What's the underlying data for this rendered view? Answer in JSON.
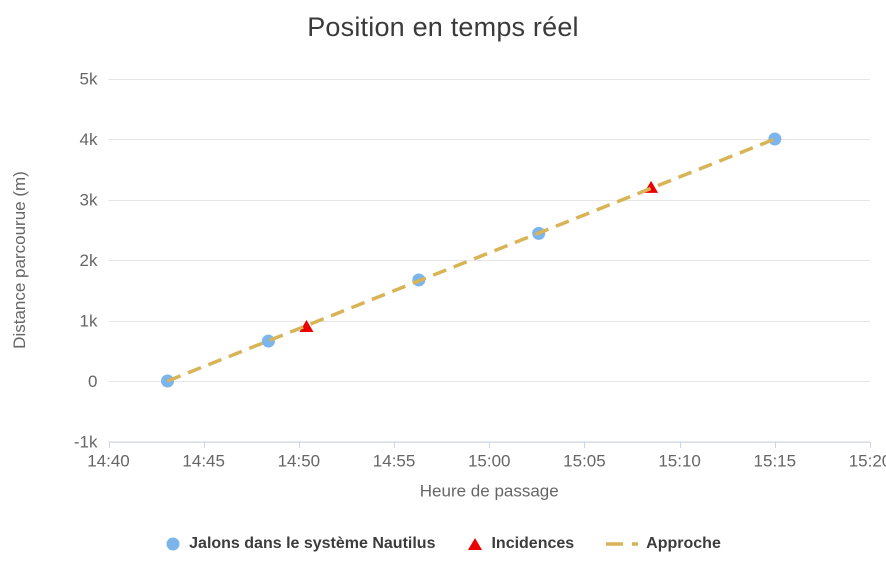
{
  "chart_data": {
    "type": "scatter",
    "title": "Position en temps réel",
    "xlabel": "Heure de passage",
    "ylabel": "Distance parcourue (m)",
    "legend_position": "bottom",
    "grid": "horizontal-only",
    "x_axis": {
      "tick_labels": [
        "14:40",
        "14:45",
        "14:50",
        "14:55",
        "15:00",
        "15:05",
        "15:10",
        "15:15",
        "15:20"
      ],
      "range_minutes": [
        0,
        40
      ],
      "tick_interval_minutes": 5,
      "base_time": "14:40"
    },
    "y_axis": {
      "tick_labels": [
        "5k",
        "4k",
        "3k",
        "2k",
        "1k",
        "0",
        "-1k"
      ],
      "tick_values": [
        5000,
        4000,
        3000,
        2000,
        1000,
        0,
        -1000
      ],
      "range": [
        -1000,
        5000
      ]
    },
    "series": [
      {
        "id": "jalons",
        "name": "Jalons dans le système Nautilus",
        "type": "scatter",
        "marker": "circle",
        "color": "#7cb5ec",
        "points": [
          {
            "time": "14:43",
            "x_minutes": 3.1,
            "y": 0
          },
          {
            "time": "14:48",
            "x_minutes": 8.4,
            "y": 660
          },
          {
            "time": "14:56",
            "x_minutes": 16.3,
            "y": 1670
          },
          {
            "time": "15:03",
            "x_minutes": 22.6,
            "y": 2440
          },
          {
            "time": "15:15",
            "x_minutes": 35.0,
            "y": 4000
          }
        ]
      },
      {
        "id": "incidences",
        "name": "Incidences",
        "type": "scatter",
        "marker": "triangle",
        "color": "#ed0000",
        "points": [
          {
            "time": "14:50",
            "x_minutes": 10.4,
            "y": 900
          },
          {
            "time": "15:08",
            "x_minutes": 28.5,
            "y": 3200
          }
        ]
      },
      {
        "id": "approche",
        "name": "Approche",
        "type": "line",
        "marker": "dash",
        "color": "#d8b456",
        "dash_pattern": [
          14,
          8
        ],
        "points": [
          {
            "time": "14:43",
            "x_minutes": 3.1,
            "y": 0
          },
          {
            "time": "15:15",
            "x_minutes": 35.0,
            "y": 4000
          }
        ]
      }
    ],
    "colors": {
      "background": "#ffffff",
      "gridline": "#e6e6e6",
      "axis_line": "#ccd6eb",
      "tick_text": "#666666",
      "axis_title_text": "#666666",
      "title_text": "#3a3a3a",
      "legend_text": "#3c3c3c"
    }
  }
}
